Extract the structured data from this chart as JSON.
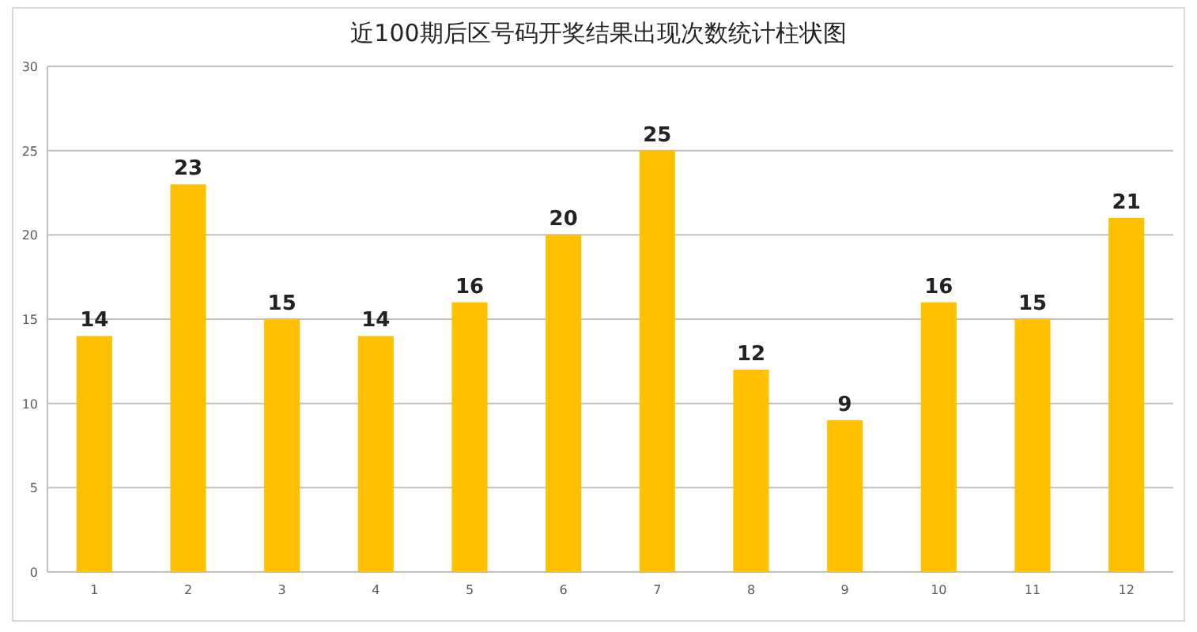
{
  "chart_data": {
    "type": "bar",
    "title": "近100期后区号码开奖结果出现次数统计柱状图",
    "categories": [
      "1",
      "2",
      "3",
      "4",
      "5",
      "6",
      "7",
      "8",
      "9",
      "10",
      "11",
      "12"
    ],
    "values": [
      14,
      23,
      15,
      14,
      16,
      20,
      25,
      12,
      9,
      16,
      15,
      21
    ],
    "color": "#ffc000",
    "data_labels": true,
    "ylim": [
      0,
      30
    ],
    "yticks": [
      0,
      5,
      10,
      15,
      20,
      25,
      30
    ],
    "grid": "y"
  }
}
